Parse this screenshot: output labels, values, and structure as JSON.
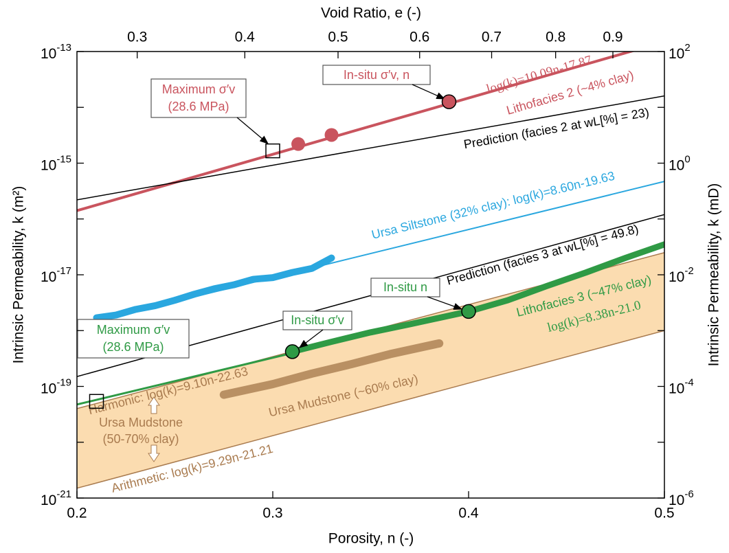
{
  "chart_data": {
    "type": "line",
    "title_top": "Void Ratio, e (-)",
    "xlabel": "Porosity, n (-)",
    "ylabel": "Intrinsic Permeability, k (m²)",
    "y2label": "Intrinsic Permeability, k (mD)",
    "xlim": [
      0.2,
      0.5
    ],
    "xticks": [
      0.2,
      0.3,
      0.4,
      0.5
    ],
    "x2ticks": [
      0.3,
      0.4,
      0.5,
      0.6,
      0.7,
      0.8,
      0.9
    ],
    "ylog": true,
    "ylim": [
      1e-21,
      1e-13
    ],
    "yticks": [
      {
        "value": 1e-13,
        "label": "10",
        "exponent": "-13"
      },
      {
        "value": 1e-15,
        "label": "10",
        "exponent": "-15"
      },
      {
        "value": 1e-17,
        "label": "10",
        "exponent": "-17"
      },
      {
        "value": 1e-19,
        "label": "10",
        "exponent": "-19"
      },
      {
        "value": 1e-21,
        "label": "10",
        "exponent": "-21"
      }
    ],
    "yticks_minor": [
      1e-14,
      1e-16,
      1e-18,
      1e-20
    ],
    "y2lim": [
      1e-06,
      100
    ],
    "y2ticks": [
      {
        "value": 100,
        "label": "10",
        "exponent": "2"
      },
      {
        "value": 1,
        "label": "10",
        "exponent": "0"
      },
      {
        "value": 0.01,
        "label": "10",
        "exponent": "-2"
      },
      {
        "value": 0.0001,
        "label": "10",
        "exponent": "-4"
      },
      {
        "value": 1e-06,
        "label": "10",
        "exponent": "-6"
      }
    ],
    "band": {
      "x": [
        0.2,
        0.5
      ],
      "low": [
        1.5e-21,
        1e-18
      ],
      "high": [
        4e-20,
        2.5e-17
      ],
      "color": "#fbdcb0",
      "edge": "#a97b4f"
    },
    "series": [
      {
        "marker": "line",
        "color": "#c9545e",
        "width": 4,
        "x": [
          0.2,
          0.5
        ],
        "values": [
          1.41e-16,
          1.5e-13
        ]
      },
      {
        "marker": "line",
        "color": "#000000",
        "width": 1.5,
        "x": [
          0.2,
          0.5
        ],
        "values": [
          2.2e-16,
          1.6e-14
        ]
      },
      {
        "marker": "line",
        "color": "#2aa7df",
        "width": 2,
        "x": [
          0.2,
          0.5
        ],
        "values": [
          1.23e-18,
          4.7e-16
        ]
      },
      {
        "marker": "line",
        "color": "#2aa7df",
        "width": 10,
        "x": [
          0.21,
          0.22,
          0.23,
          0.24,
          0.25,
          0.26,
          0.27,
          0.28,
          0.29,
          0.3,
          0.31,
          0.32,
          0.33
        ],
        "values": [
          1.7e-18,
          1.9e-18,
          2.4e-18,
          2.8e-18,
          3.5e-18,
          4.5e-18,
          5.6e-18,
          6.6e-18,
          8.3e-18,
          8.9e-18,
          1.1e-17,
          1.3e-17,
          2e-17
        ]
      },
      {
        "marker": "line",
        "color": "#000000",
        "width": 1.5,
        "x": [
          0.2,
          0.5
        ],
        "values": [
          1.5e-19,
          1.2e-16
        ]
      },
      {
        "marker": "line",
        "color": "#2f9a45",
        "width": 3,
        "x": [
          0.2,
          0.31
        ],
        "values": [
          4.74e-20,
          3.96e-19
        ]
      },
      {
        "marker": "line",
        "color": "#2f9a45",
        "width": 9,
        "x": [
          0.31,
          0.33,
          0.35,
          0.37,
          0.4,
          0.42,
          0.44,
          0.46,
          0.48,
          0.5
        ],
        "values": [
          4.2e-19,
          6.3e-19,
          9.3e-19,
          1.3e-18,
          2.2e-18,
          3.5e-18,
          6.3e-18,
          1.1e-17,
          2e-17,
          3.5e-17
        ]
      },
      {
        "marker": "line",
        "color": "#b99063",
        "width": 12,
        "x": [
          0.275,
          0.3,
          0.32,
          0.34,
          0.36,
          0.385
        ],
        "values": [
          7.1e-20,
          1.1e-19,
          1.7e-19,
          2.5e-19,
          3.8e-19,
          5.9e-19
        ]
      },
      {
        "marker": "circle",
        "color": "#c9545e",
        "x": [
          0.313,
          0.33
        ],
        "values": [
          2.2e-15,
          3.2e-15
        ]
      },
      {
        "marker": "circle",
        "color": "#c9545e",
        "stroke": "#000000",
        "x": [
          0.39
        ],
        "values": [
          1.26e-14
        ]
      },
      {
        "marker": "square",
        "stroke": "#000000",
        "x": [
          0.3
        ],
        "values": [
          1.66e-15
        ]
      },
      {
        "marker": "circle",
        "color": "#2f9a45",
        "stroke": "#000000",
        "x": [
          0.31,
          0.4
        ],
        "values": [
          4.2e-19,
          2.2e-18
        ]
      },
      {
        "marker": "square",
        "stroke": "#000000",
        "x": [
          0.21
        ],
        "values": [
          5.4e-20
        ]
      }
    ],
    "annotations": [
      {
        "text": "In-situ σ′v, n"
      },
      {
        "text": "log(k)=10.09n-17.87"
      },
      {
        "text": "Lithofacies 2 (~4% clay)"
      },
      {
        "text": "Maximum σ′v"
      },
      {
        "text": "(28.6 MPa)"
      },
      {
        "text": "Prediction (facies 2 at wL[%] = 23)"
      },
      {
        "text": "Ursa Siltstone (32% clay): log(k)=8.60n-19.63"
      },
      {
        "text": "Prediction (facies 3 at wL[%] = 49.8)"
      },
      {
        "text": "In-situ n"
      },
      {
        "text": "In-situ σ′v"
      },
      {
        "text": "Maximum σ′v"
      },
      {
        "text": "(28.6 MPa)"
      },
      {
        "text": "Lithofacies 3 (~47% clay)"
      },
      {
        "text": "log(k)=8.38n-21.0"
      },
      {
        "text": "Harmonic: log(k)=9.10n-22.63"
      },
      {
        "text": "Ursa Mudstone (~60% clay)"
      },
      {
        "text": "Ursa Mudstone"
      },
      {
        "text": "(50-70% clay)"
      },
      {
        "text": "Arithmetic: log(k)=9.29n-21.21"
      }
    ]
  }
}
